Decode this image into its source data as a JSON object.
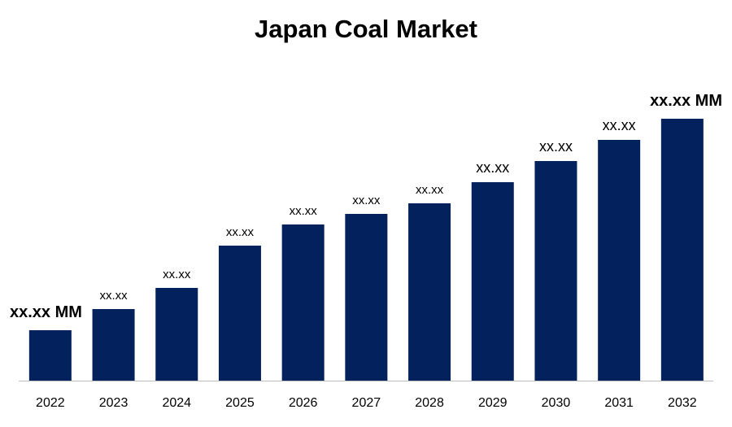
{
  "chart_data": {
    "type": "bar",
    "title": "Japan Coal Market",
    "xlabel": "",
    "ylabel": "",
    "categories": [
      "2022",
      "2023",
      "2024",
      "2025",
      "2026",
      "2027",
      "2028",
      "2029",
      "2030",
      "2031",
      "2032"
    ],
    "values": [
      62,
      88,
      114,
      166,
      192,
      205,
      218,
      244,
      270,
      296,
      322
    ],
    "data_labels": [
      "xx.xx MM",
      "xx.xx",
      "xx.xx",
      "xx.xx",
      "xx.xx",
      "xx.xx",
      "xx.xx",
      "xx.xx",
      "xx.xx",
      "xx.xx",
      "xx.xx MM"
    ],
    "ylim": [
      0,
      340
    ],
    "grid": false,
    "legend": "none",
    "colors": {
      "bar": "#03215C",
      "axis": "#BFBFBF",
      "text": "#000000"
    }
  }
}
